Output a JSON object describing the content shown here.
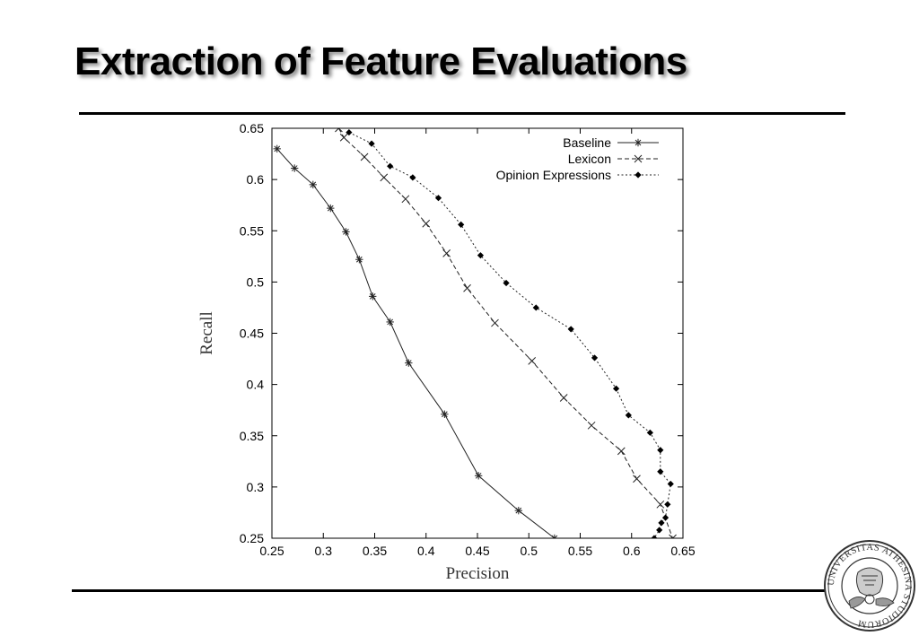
{
  "slide": {
    "title": "Extraction of Feature Evaluations",
    "logo_text": "UNIVERSITAS ATHESINA STUDIORUM"
  },
  "chart_data": {
    "type": "line",
    "title": "",
    "xlabel": "Precision",
    "ylabel": "Recall",
    "xlim": [
      0.25,
      0.65
    ],
    "ylim": [
      0.25,
      0.65
    ],
    "xticks": [
      "0.25",
      "0.3",
      "0.35",
      "0.4",
      "0.45",
      "0.5",
      "0.55",
      "0.6",
      "0.65"
    ],
    "yticks": [
      "0.25",
      "0.3",
      "0.35",
      "0.4",
      "0.45",
      "0.5",
      "0.55",
      "0.6",
      "0.65"
    ],
    "grid": false,
    "legend_position": "top-right",
    "series": [
      {
        "name": "Baseline",
        "marker": "asterisk",
        "line": "solid",
        "points": [
          [
            0.255,
            0.63
          ],
          [
            0.272,
            0.611
          ],
          [
            0.29,
            0.595
          ],
          [
            0.307,
            0.572
          ],
          [
            0.322,
            0.549
          ],
          [
            0.335,
            0.522
          ],
          [
            0.348,
            0.486
          ],
          [
            0.365,
            0.461
          ],
          [
            0.383,
            0.421
          ],
          [
            0.418,
            0.371
          ],
          [
            0.451,
            0.311
          ],
          [
            0.49,
            0.277
          ],
          [
            0.525,
            0.25
          ]
        ]
      },
      {
        "name": "Lexicon",
        "marker": "x",
        "line": "dashed",
        "points": [
          [
            0.315,
            0.65
          ],
          [
            0.32,
            0.641
          ],
          [
            0.34,
            0.622
          ],
          [
            0.359,
            0.602
          ],
          [
            0.38,
            0.581
          ],
          [
            0.4,
            0.557
          ],
          [
            0.42,
            0.528
          ],
          [
            0.44,
            0.494
          ],
          [
            0.467,
            0.46
          ],
          [
            0.503,
            0.423
          ],
          [
            0.534,
            0.387
          ],
          [
            0.561,
            0.36
          ],
          [
            0.59,
            0.335
          ],
          [
            0.605,
            0.308
          ],
          [
            0.628,
            0.283
          ],
          [
            0.64,
            0.25
          ]
        ]
      },
      {
        "name": "Opinion Expressions",
        "marker": "diamond",
        "line": "dotted",
        "points": [
          [
            0.325,
            0.646
          ],
          [
            0.347,
            0.635
          ],
          [
            0.365,
            0.613
          ],
          [
            0.387,
            0.602
          ],
          [
            0.412,
            0.582
          ],
          [
            0.434,
            0.556
          ],
          [
            0.453,
            0.526
          ],
          [
            0.478,
            0.499
          ],
          [
            0.507,
            0.475
          ],
          [
            0.541,
            0.454
          ],
          [
            0.564,
            0.426
          ],
          [
            0.585,
            0.396
          ],
          [
            0.597,
            0.37
          ],
          [
            0.618,
            0.353
          ],
          [
            0.628,
            0.336
          ],
          [
            0.628,
            0.315
          ],
          [
            0.638,
            0.303
          ],
          [
            0.635,
            0.283
          ],
          [
            0.633,
            0.27
          ],
          [
            0.629,
            0.265
          ],
          [
            0.627,
            0.258
          ],
          [
            0.622,
            0.25
          ]
        ]
      }
    ]
  },
  "colors": {
    "axis": "#000000",
    "series": "#222222",
    "title": "#000000",
    "rule": "#000000"
  }
}
